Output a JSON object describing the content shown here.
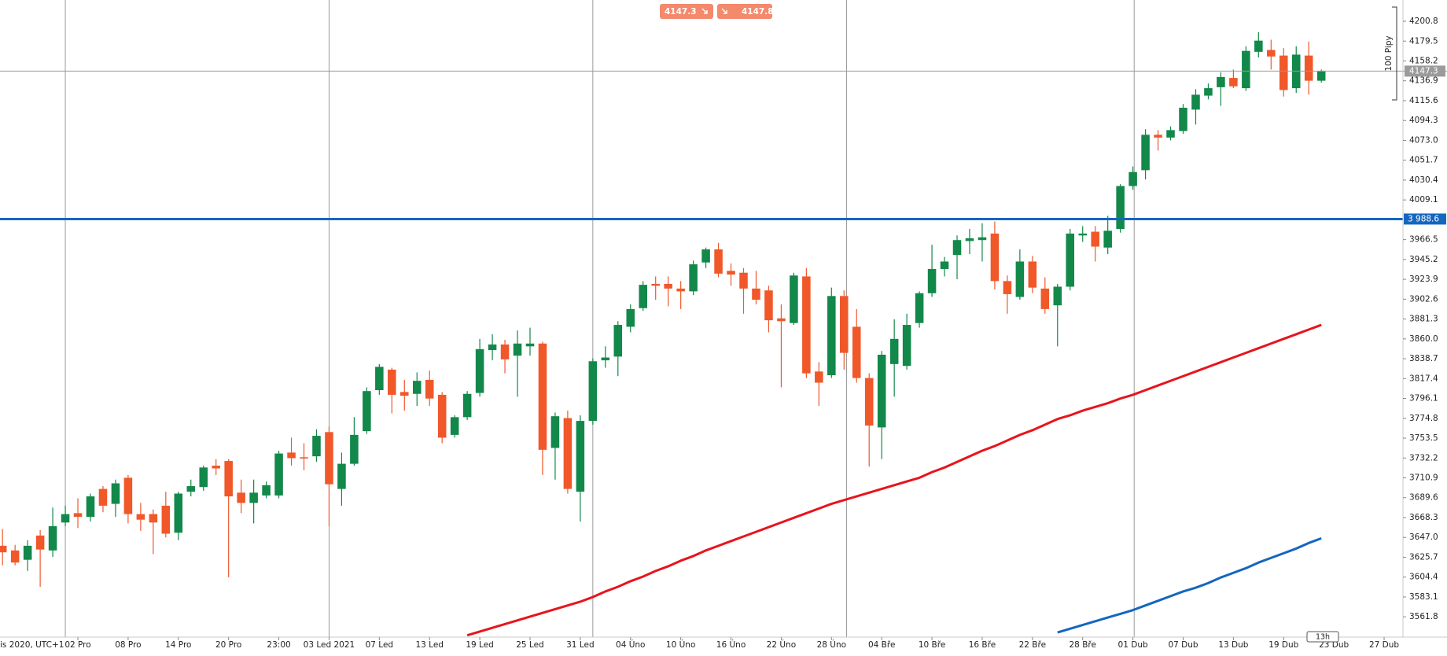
{
  "chart_data": {
    "type": "candlestick",
    "open": [
      3638,
      3633,
      3623,
      3649,
      3633,
      3663,
      3673,
      3669,
      3699,
      3683,
      3711,
      3672,
      3672,
      3681,
      3652,
      3696,
      3701,
      3724,
      3729,
      3695,
      3684,
      3692,
      3692,
      3738,
      3733,
      3734,
      3760,
      3699,
      3726,
      3761,
      3805,
      3827,
      3803,
      3801,
      3816,
      3800,
      3757,
      3776,
      3802,
      3848,
      3854,
      3842,
      3852,
      3855,
      3743,
      3775,
      3696,
      3772,
      3837,
      3841,
      3873,
      3893,
      3919,
      3919,
      3914,
      3911,
      3942,
      3956,
      3933,
      3931,
      3914,
      3912,
      3882,
      3877,
      3927,
      3825,
      3821,
      3906,
      3873,
      3818,
      3765,
      3833,
      3831,
      3877,
      3909,
      3935,
      3950,
      3965,
      3966,
      3973,
      3922,
      3905,
      3943,
      3914,
      3896,
      3916,
      3971,
      3975,
      3958,
      3978,
      4024,
      4041,
      4079,
      4076,
      4083,
      4106,
      4121,
      4130,
      4140,
      4129,
      4168,
      4170,
      4164,
      4129,
      4164,
      4137
    ],
    "high": [
      3656,
      3639,
      3644,
      3655,
      3679,
      3681,
      3689,
      3694,
      3702,
      3709,
      3714,
      3684,
      3677,
      3696,
      3696,
      3709,
      3724,
      3731,
      3731,
      3709,
      3709,
      3707,
      3740,
      3754,
      3748,
      3763,
      3766,
      3738,
      3776,
      3808,
      3833,
      3829,
      3816,
      3824,
      3826,
      3803,
      3778,
      3804,
      3860,
      3865,
      3859,
      3869,
      3872,
      3857,
      3781,
      3783,
      3778,
      3839,
      3852,
      3879,
      3897,
      3922,
      3927,
      3927,
      3922,
      3944,
      3958,
      3963,
      3941,
      3936,
      3933,
      3917,
      3897,
      3931,
      3936,
      3835,
      3915,
      3912,
      3892,
      3823,
      3847,
      3881,
      3887,
      3911,
      3961,
      3948,
      3971,
      3978,
      3984,
      3986,
      3928,
      3956,
      3949,
      3926,
      3919,
      3978,
      3981,
      3981,
      3992,
      4026,
      4045,
      4085,
      4084,
      4088,
      4112,
      4128,
      4134,
      4146,
      4149,
      4174,
      4189,
      4181,
      4172,
      4174,
      4179,
      4149
    ],
    "low": [
      3617,
      3617,
      3611,
      3594,
      3626,
      3659,
      3657,
      3664,
      3674,
      3669,
      3662,
      3654,
      3629,
      3647,
      3644,
      3691,
      3697,
      3714,
      3604,
      3673,
      3662,
      3689,
      3689,
      3724,
      3719,
      3728,
      3659,
      3681,
      3724,
      3758,
      3800,
      3780,
      3783,
      3788,
      3788,
      3748,
      3754,
      3773,
      3798,
      3837,
      3823,
      3798,
      3842,
      3714,
      3709,
      3694,
      3664,
      3768,
      3829,
      3820,
      3867,
      3890,
      3902,
      3895,
      3892,
      3907,
      3936,
      3926,
      3917,
      3887,
      3897,
      3867,
      3808,
      3875,
      3818,
      3788,
      3818,
      3827,
      3813,
      3723,
      3731,
      3798,
      3827,
      3872,
      3905,
      3927,
      3924,
      3951,
      3943,
      3913,
      3887,
      3902,
      3909,
      3887,
      3852,
      3912,
      3964,
      3943,
      3951,
      3974,
      4020,
      4031,
      4062,
      4073,
      4080,
      4090,
      4117,
      4110,
      4129,
      4126,
      4162,
      4149,
      4120,
      4124,
      4122,
      4135
    ],
    "close": [
      3631,
      3620,
      3638,
      3634,
      3659,
      3672,
      3669,
      3691,
      3681,
      3705,
      3672,
      3666,
      3663,
      3651,
      3694,
      3702,
      3722,
      3721,
      3691,
      3684,
      3695,
      3703,
      3737,
      3732,
      3732,
      3756,
      3704,
      3726,
      3757,
      3804,
      3830,
      3800,
      3799,
      3815,
      3796,
      3754,
      3776,
      3801,
      3849,
      3854,
      3838,
      3855,
      3855,
      3741,
      3777,
      3699,
      3772,
      3836,
      3840,
      3875,
      3892,
      3918,
      3917,
      3914,
      3911,
      3940,
      3956,
      3930,
      3929,
      3914,
      3902,
      3880,
      3879,
      3928,
      3823,
      3813,
      3906,
      3845,
      3818,
      3767,
      3843,
      3860,
      3875,
      3909,
      3935,
      3943,
      3966,
      3968,
      3969,
      3922,
      3908,
      3943,
      3915,
      3892,
      3916,
      3973,
      3973,
      3959,
      3976,
      4024,
      4039,
      4079,
      4076,
      4084,
      4108,
      4122,
      4129,
      4141,
      4131,
      4169,
      4180,
      4163,
      4127,
      4165,
      4137,
      4147
    ],
    "up_color": "#12884a",
    "down_color": "#f0582a",
    "overlays": [
      {
        "color": "#e8141c",
        "values": [
          null,
          null,
          null,
          null,
          null,
          null,
          null,
          null,
          null,
          null,
          null,
          null,
          null,
          null,
          null,
          null,
          null,
          null,
          null,
          null,
          null,
          null,
          null,
          null,
          null,
          null,
          null,
          null,
          null,
          null,
          null,
          null,
          null,
          null,
          null,
          null,
          null,
          3542,
          3546,
          3550,
          3554,
          3558,
          3562,
          3566,
          3570,
          3574,
          3578,
          3583,
          3589,
          3594,
          3600,
          3605,
          3611,
          3616,
          3622,
          3627,
          3633,
          3638,
          3643,
          3648,
          3653,
          3658,
          3663,
          3668,
          3673,
          3678,
          3683,
          3687,
          3691,
          3695,
          3699,
          3703,
          3707,
          3711,
          3717,
          3722,
          3728,
          3734,
          3740,
          3745,
          3751,
          3757,
          3762,
          3768,
          3774,
          3778,
          3783,
          3787,
          3791,
          3796,
          3800,
          3805,
          3810,
          3815,
          3820,
          3825,
          3830,
          3835,
          3840,
          3845,
          3850,
          3855,
          3860,
          3865,
          3870,
          3875
        ]
      },
      {
        "color": "#1466bf",
        "values": [
          null,
          null,
          null,
          null,
          null,
          null,
          null,
          null,
          null,
          null,
          null,
          null,
          null,
          null,
          null,
          null,
          null,
          null,
          null,
          null,
          null,
          null,
          null,
          null,
          null,
          null,
          null,
          null,
          null,
          null,
          null,
          null,
          null,
          null,
          null,
          null,
          null,
          null,
          null,
          null,
          null,
          null,
          null,
          null,
          null,
          null,
          null,
          null,
          null,
          null,
          null,
          null,
          null,
          null,
          null,
          null,
          null,
          null,
          null,
          null,
          null,
          null,
          null,
          null,
          null,
          null,
          null,
          null,
          null,
          null,
          null,
          null,
          null,
          null,
          null,
          null,
          null,
          null,
          null,
          null,
          null,
          null,
          null,
          null,
          3545,
          3549,
          3553,
          3557,
          3561,
          3565,
          3569,
          3574,
          3579,
          3584,
          3589,
          3593,
          3598,
          3604,
          3609,
          3614,
          3620,
          3625,
          3630,
          3635,
          3641,
          3646
        ]
      }
    ],
    "xlim": [
      -0.2,
      111.5
    ],
    "ylim": [
      3540,
      4223.6
    ],
    "xticks": [
      {
        "value": 6,
        "label": "02 Pro"
      },
      {
        "value": 10,
        "label": "08 Pro"
      },
      {
        "value": 14,
        "label": "14 Pro"
      },
      {
        "value": 18,
        "label": "20 Pro"
      },
      {
        "value": 22,
        "label": "23:00"
      },
      {
        "value": 26,
        "label": "03 Led 2021"
      },
      {
        "value": 30,
        "label": "07 Led"
      },
      {
        "value": 34,
        "label": "13 Led"
      },
      {
        "value": 38,
        "label": "19 Led"
      },
      {
        "value": 42,
        "label": "25 Led"
      },
      {
        "value": 46,
        "label": "31 Led"
      },
      {
        "value": 50,
        "label": "04 Úno"
      },
      {
        "value": 54,
        "label": "10 Úno"
      },
      {
        "value": 58,
        "label": "16 Úno"
      },
      {
        "value": 62,
        "label": "22 Úno"
      },
      {
        "value": 66,
        "label": "28 Úno"
      },
      {
        "value": 70,
        "label": "04 Bře"
      },
      {
        "value": 74,
        "label": "10 Bře"
      },
      {
        "value": 78,
        "label": "16 Bře"
      },
      {
        "value": 82,
        "label": "22 Bře"
      },
      {
        "value": 86,
        "label": "28 Bře"
      },
      {
        "value": 90,
        "label": "01 Dub"
      },
      {
        "value": 94,
        "label": "07 Dub"
      },
      {
        "value": 98,
        "label": "13 Dub"
      },
      {
        "value": 102,
        "label": "19 Dub"
      },
      {
        "value": 106,
        "label": "23 Dub"
      },
      {
        "value": 110,
        "label": "27 Dub"
      }
    ],
    "x_grid": [
      5,
      26,
      47,
      67.2,
      90.1
    ],
    "yticks": [
      4200.8,
      4179.5,
      4158.2,
      4136.9,
      4115.6,
      4094.3,
      {
        "value": 4073,
        "label": "4073.0"
      },
      4051.7,
      4030.4,
      4009.1,
      3966.5,
      3945.2,
      3923.9,
      3902.6,
      3881.3,
      {
        "value": 3860,
        "label": "3860.0"
      },
      3838.7,
      3817.4,
      3796.1,
      3774.8,
      3753.5,
      3732.2,
      3710.9,
      3689.6,
      3668.3,
      {
        "value": 3647,
        "label": "3647.0"
      },
      3625.7,
      3604.4,
      3583.1,
      3561.8
    ],
    "axis_caption": "is 2020, UTC+1",
    "level_line": {
      "value": 3988.6,
      "label": "3 988.6",
      "color": "#1466bf"
    },
    "price_line": 4147.3,
    "sell_badge": 4147.3,
    "buy_badge": 4147.8,
    "pip_ruler": "100 Pipy",
    "countdown": "13h"
  }
}
